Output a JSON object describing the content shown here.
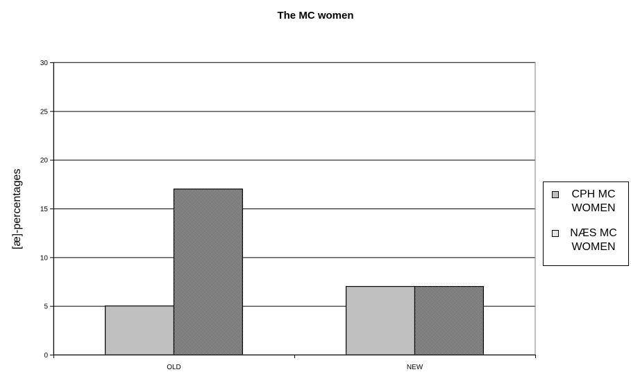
{
  "chart_data": {
    "type": "bar",
    "title": "The MC women",
    "xlabel": "",
    "ylabel": "[æ]-percentages",
    "categories": [
      "OLD",
      "NEW"
    ],
    "ylim": [
      0,
      30
    ],
    "yticks": [
      0,
      5,
      10,
      15,
      20,
      25,
      30
    ],
    "grid": true,
    "legend_position": "right",
    "series": [
      {
        "name": "CPH MC WOMEN",
        "values": [
          5,
          7
        ],
        "color": "#c0c0c0",
        "pattern": "solid"
      },
      {
        "name": "NÆS MC WOMEN",
        "values": [
          17,
          7
        ],
        "color": "#c0c0c0",
        "pattern": "crosshatch"
      }
    ]
  }
}
